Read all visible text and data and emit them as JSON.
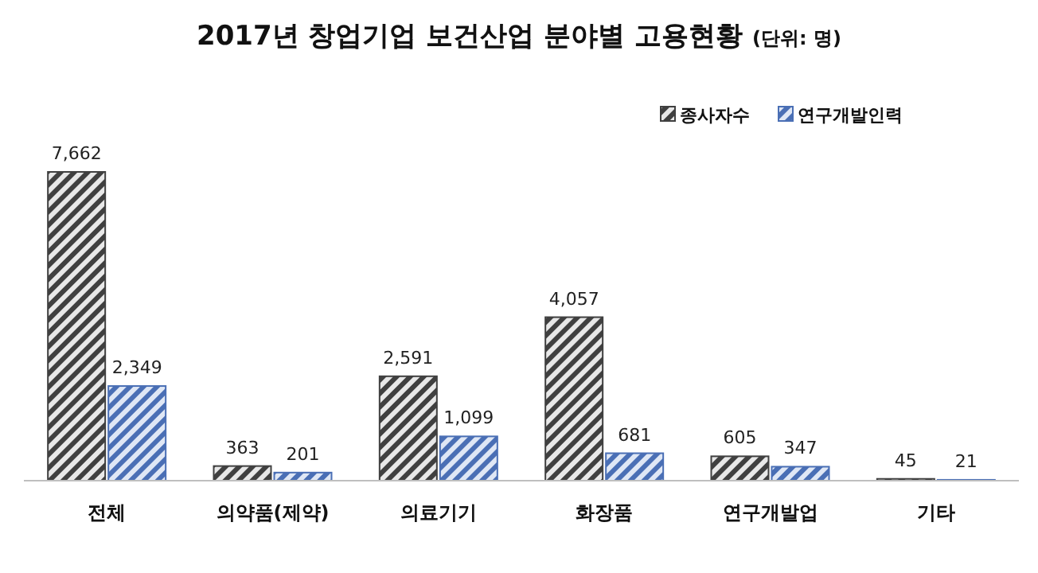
{
  "chart_data": {
    "type": "bar",
    "title": "2017년 창업기업 보건산업 분야별 고용현황",
    "subtitle": "(단위: 명)",
    "categories": [
      "전체",
      "의약품(제약)",
      "의료기기",
      "화장품",
      "연구개발업",
      "기타"
    ],
    "series": [
      {
        "name": "종사자수",
        "color": "#404040",
        "values": [
          7662,
          363,
          2591,
          4057,
          605,
          45
        ],
        "value_labels": [
          "7,662",
          "363",
          "2,591",
          "4,057",
          "605",
          "45"
        ]
      },
      {
        "name": "연구개발인력",
        "color": "#4a6fb5",
        "values": [
          2349,
          201,
          1099,
          681,
          347,
          21
        ],
        "value_labels": [
          "2,349",
          "201",
          "1,099",
          "681",
          "347",
          "21"
        ]
      }
    ],
    "legend": "top right"
  }
}
